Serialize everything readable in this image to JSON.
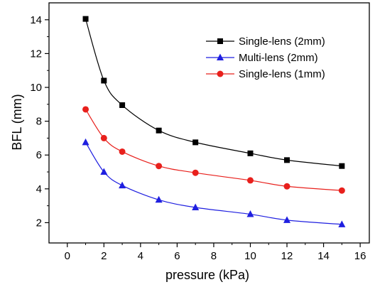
{
  "chart_data": {
    "type": "line",
    "xlabel": "pressure (kPa)",
    "ylabel": "BFL (mm)",
    "xlim": [
      -1,
      16.5
    ],
    "ylim": [
      0.8,
      15
    ],
    "xticks": [
      0,
      2,
      4,
      6,
      8,
      10,
      12,
      14,
      16
    ],
    "yticks": [
      2,
      4,
      6,
      8,
      10,
      12,
      14
    ],
    "grid": false,
    "legend_position": "top-right",
    "series": [
      {
        "name": "Single-lens (2mm)",
        "color": "#000000",
        "marker": "square",
        "x": [
          1,
          2,
          3,
          5,
          7,
          10,
          12,
          15
        ],
        "y": [
          14.05,
          10.4,
          8.95,
          7.45,
          6.75,
          6.1,
          5.7,
          5.35
        ]
      },
      {
        "name": "Multi-lens (2mm)",
        "color": "#1f1fe0",
        "marker": "triangle",
        "x": [
          1,
          2,
          3,
          5,
          7,
          10,
          12,
          15
        ],
        "y": [
          6.75,
          5.0,
          4.2,
          3.35,
          2.9,
          2.5,
          2.15,
          1.9
        ]
      },
      {
        "name": "Single-lens (1mm)",
        "color": "#e8201c",
        "marker": "circle",
        "x": [
          1,
          2,
          3,
          5,
          7,
          10,
          12,
          15
        ],
        "y": [
          8.7,
          7.0,
          6.2,
          5.35,
          4.95,
          4.5,
          4.15,
          3.9
        ]
      }
    ]
  }
}
